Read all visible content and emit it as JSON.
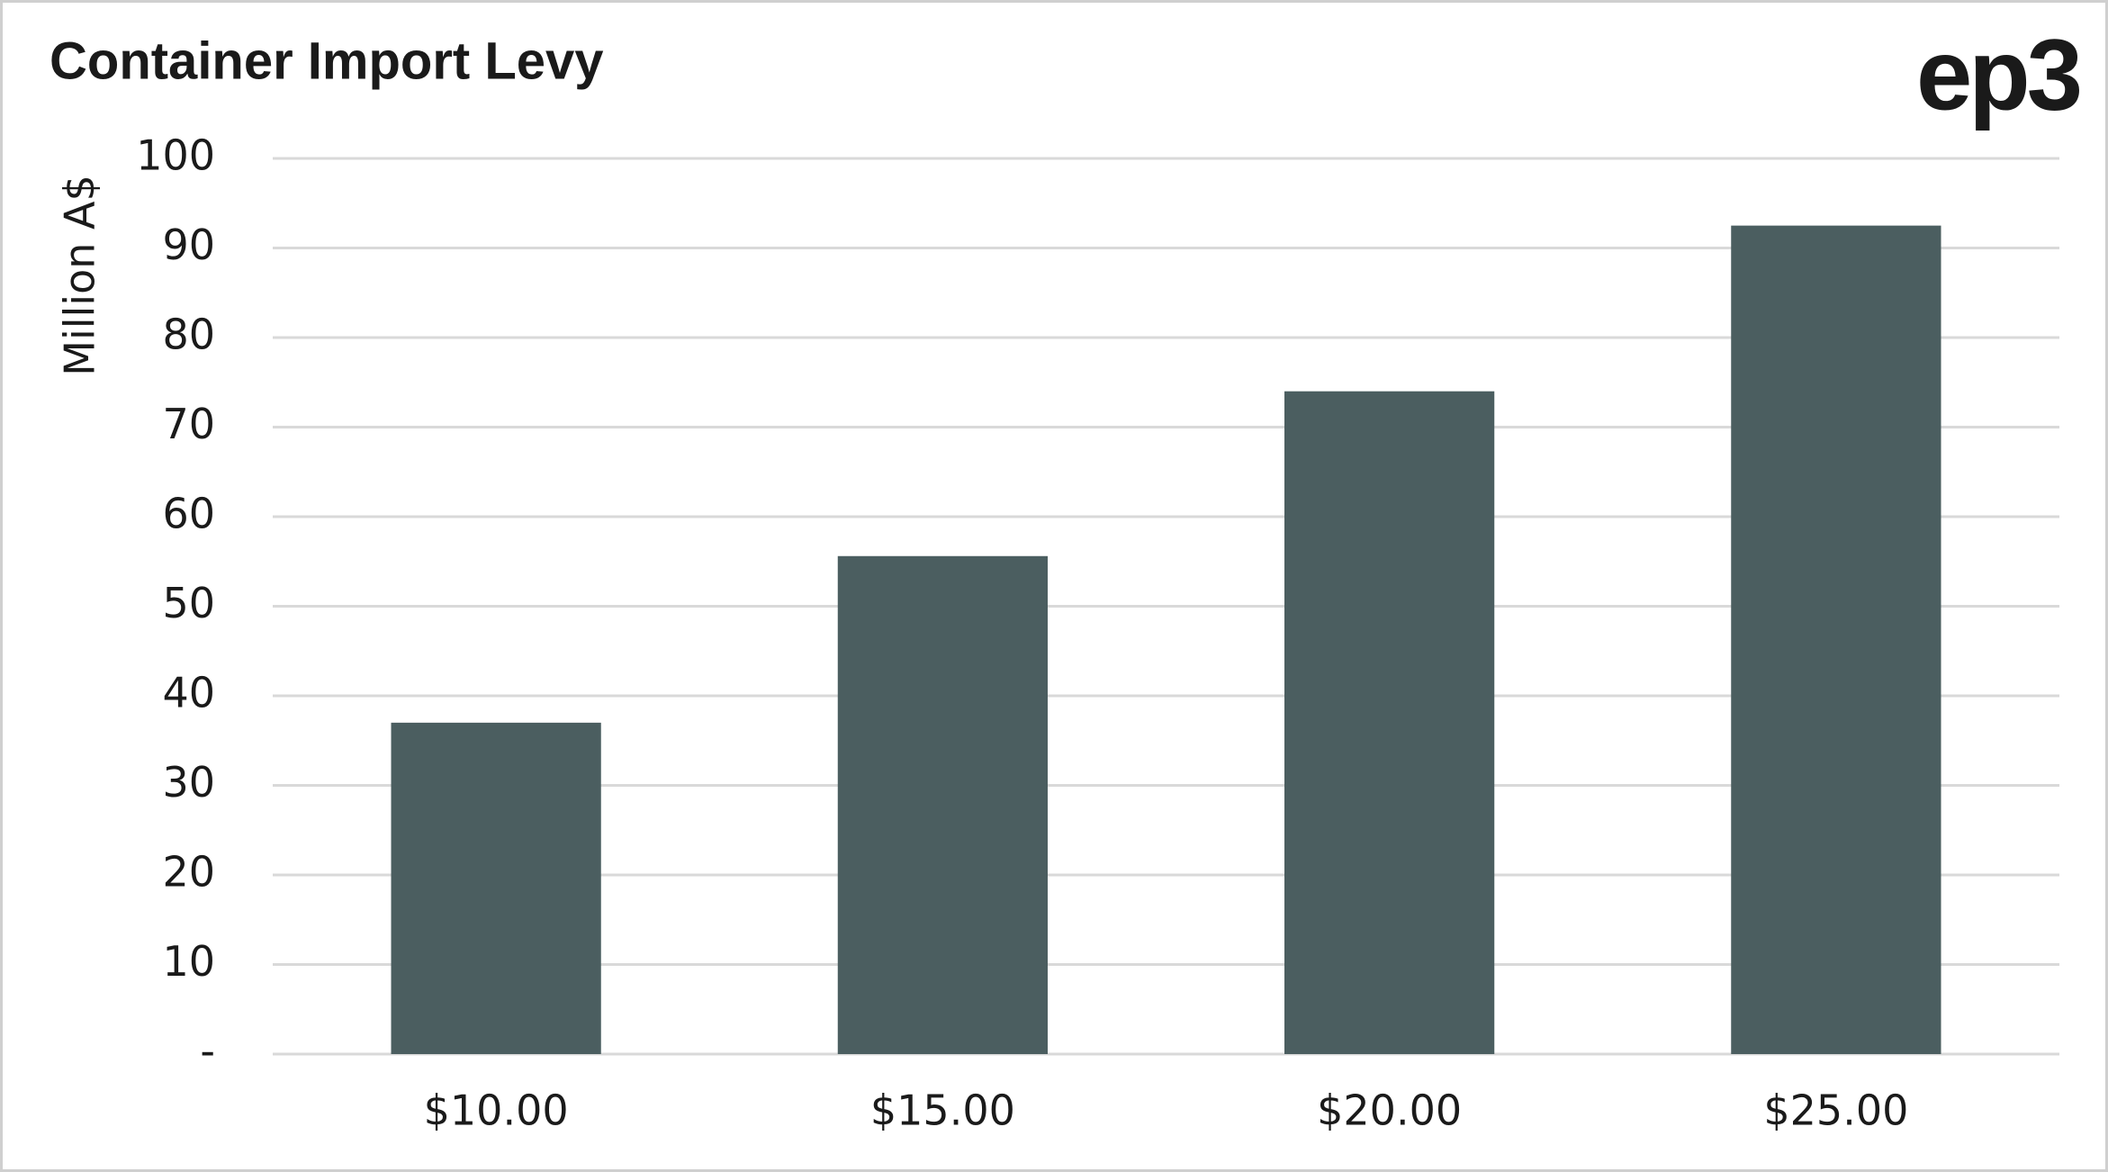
{
  "chart_data": {
    "type": "bar",
    "title": "Container Import Levy",
    "logo": "ep3",
    "y_label": "Million A$",
    "categories": [
      "$10.00",
      "$15.00",
      "$20.00",
      "$25.00"
    ],
    "values": [
      37,
      55.6,
      74,
      92.5
    ],
    "color": "#4b5e60",
    "ylim": [
      0,
      100
    ],
    "yticks": [
      {
        "value": 0,
        "label": "-"
      },
      10,
      20,
      30,
      40,
      50,
      60,
      70,
      80,
      90,
      100
    ],
    "grid": true
  }
}
